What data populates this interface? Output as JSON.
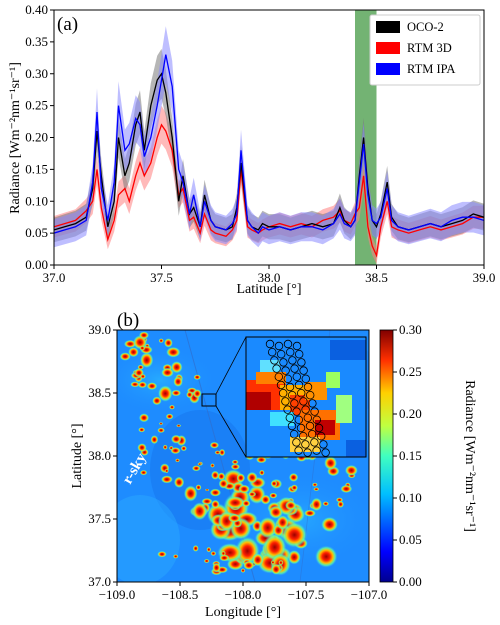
{
  "chart_data": [
    {
      "id": "a",
      "type": "line",
      "panel_label": "(a)",
      "xlabel": "Latitude [°]",
      "ylabel": "Radiance [Wm⁻²nm⁻¹sr⁻¹]",
      "xlim": [
        37.0,
        39.0
      ],
      "ylim": [
        0.0,
        0.4
      ],
      "x_ticks": [
        "37.0",
        "37.5",
        "38.0",
        "38.5",
        "39.0"
      ],
      "y_ticks": [
        "0.00",
        "0.05",
        "0.10",
        "0.15",
        "0.20",
        "0.25",
        "0.30",
        "0.35",
        "0.40"
      ],
      "legend_position": "top-right",
      "highlight_band": {
        "x0": 38.4,
        "x1": 38.5,
        "color": "#5aa65a"
      },
      "x": [
        37.0,
        37.05,
        37.1,
        37.15,
        37.18,
        37.2,
        37.22,
        37.25,
        37.28,
        37.3,
        37.33,
        37.35,
        37.38,
        37.4,
        37.42,
        37.45,
        37.48,
        37.5,
        37.52,
        37.55,
        37.58,
        37.6,
        37.63,
        37.65,
        37.68,
        37.7,
        37.73,
        37.75,
        37.8,
        37.83,
        37.85,
        37.87,
        37.9,
        37.92,
        37.95,
        37.97,
        38.0,
        38.05,
        38.1,
        38.15,
        38.2,
        38.25,
        38.3,
        38.33,
        38.35,
        38.38,
        38.4,
        38.42,
        38.44,
        38.46,
        38.48,
        38.5,
        38.52,
        38.55,
        38.57,
        38.6,
        38.65,
        38.7,
        38.75,
        38.8,
        38.85,
        38.9,
        38.95,
        39.0
      ],
      "series": [
        {
          "name": "OCO-2",
          "color": "#000000",
          "band_color": "#7a7a7a",
          "values": [
            0.055,
            0.06,
            0.065,
            0.075,
            0.12,
            0.21,
            0.14,
            0.06,
            0.1,
            0.2,
            0.14,
            0.16,
            0.22,
            0.24,
            0.18,
            0.25,
            0.29,
            0.3,
            0.27,
            0.2,
            0.1,
            0.14,
            0.08,
            0.09,
            0.06,
            0.11,
            0.07,
            0.06,
            0.055,
            0.06,
            0.09,
            0.16,
            0.07,
            0.06,
            0.055,
            0.065,
            0.06,
            0.06,
            0.055,
            0.06,
            0.065,
            0.06,
            0.065,
            0.09,
            0.07,
            0.06,
            0.07,
            0.14,
            0.2,
            0.12,
            0.07,
            0.06,
            0.08,
            0.13,
            0.075,
            0.06,
            0.055,
            0.06,
            0.065,
            0.06,
            0.065,
            0.07,
            0.08,
            0.075
          ],
          "band_width": 0.015
        },
        {
          "name": "RTM 3D",
          "color": "#ff0000",
          "band_color": "#ff8080",
          "values": [
            0.06,
            0.065,
            0.07,
            0.085,
            0.1,
            0.15,
            0.09,
            0.04,
            0.07,
            0.11,
            0.12,
            0.1,
            0.14,
            0.16,
            0.14,
            0.16,
            0.2,
            0.22,
            0.21,
            0.18,
            0.11,
            0.12,
            0.07,
            0.075,
            0.05,
            0.08,
            0.055,
            0.05,
            0.045,
            0.055,
            0.07,
            0.15,
            0.06,
            0.055,
            0.05,
            0.055,
            0.06,
            0.065,
            0.06,
            0.065,
            0.06,
            0.07,
            0.075,
            0.085,
            0.07,
            0.065,
            0.08,
            0.09,
            0.14,
            0.06,
            0.03,
            0.015,
            0.06,
            0.1,
            0.06,
            0.055,
            0.05,
            0.055,
            0.06,
            0.055,
            0.06,
            0.065,
            0.075,
            0.075
          ],
          "band_width": 0.012
        },
        {
          "name": "RTM IPA",
          "color": "#0000ff",
          "band_color": "#8888ff",
          "values": [
            0.05,
            0.055,
            0.06,
            0.07,
            0.13,
            0.24,
            0.12,
            0.07,
            0.13,
            0.25,
            0.18,
            0.19,
            0.23,
            0.22,
            0.17,
            0.2,
            0.25,
            0.29,
            0.33,
            0.28,
            0.15,
            0.13,
            0.08,
            0.11,
            0.06,
            0.1,
            0.07,
            0.06,
            0.055,
            0.065,
            0.08,
            0.18,
            0.07,
            0.06,
            0.05,
            0.06,
            0.055,
            0.06,
            0.055,
            0.06,
            0.06,
            0.055,
            0.065,
            0.08,
            0.065,
            0.06,
            0.07,
            0.13,
            0.19,
            0.11,
            0.07,
            0.065,
            0.075,
            0.12,
            0.07,
            0.06,
            0.055,
            0.06,
            0.065,
            0.06,
            0.07,
            0.075,
            0.075,
            0.07
          ],
          "band_width": 0.018
        }
      ]
    },
    {
      "id": "b",
      "type": "heatmap",
      "panel_label": "(b)",
      "xlabel": "Longitude [°]",
      "ylabel": "Latitude [°]",
      "xlim": [
        -109.0,
        -107.0
      ],
      "ylim": [
        37.0,
        39.0
      ],
      "x_ticks": [
        "−109.0",
        "−108.5",
        "−108.0",
        "−107.5",
        "−107.0"
      ],
      "y_ticks": [
        "37.0",
        "37.5",
        "38.0",
        "38.5",
        "39.0"
      ],
      "colorbar": {
        "label": "Radiance [Wm⁻²nm⁻¹sr⁻¹]",
        "range": [
          0.0,
          0.3
        ],
        "ticks": [
          "0.00",
          "0.05",
          "0.10",
          "0.15",
          "0.20",
          "0.25",
          "0.30"
        ],
        "colormap": "jet"
      },
      "annotation_text": "r-sky",
      "inset": {
        "footprint_circles": true
      }
    }
  ]
}
